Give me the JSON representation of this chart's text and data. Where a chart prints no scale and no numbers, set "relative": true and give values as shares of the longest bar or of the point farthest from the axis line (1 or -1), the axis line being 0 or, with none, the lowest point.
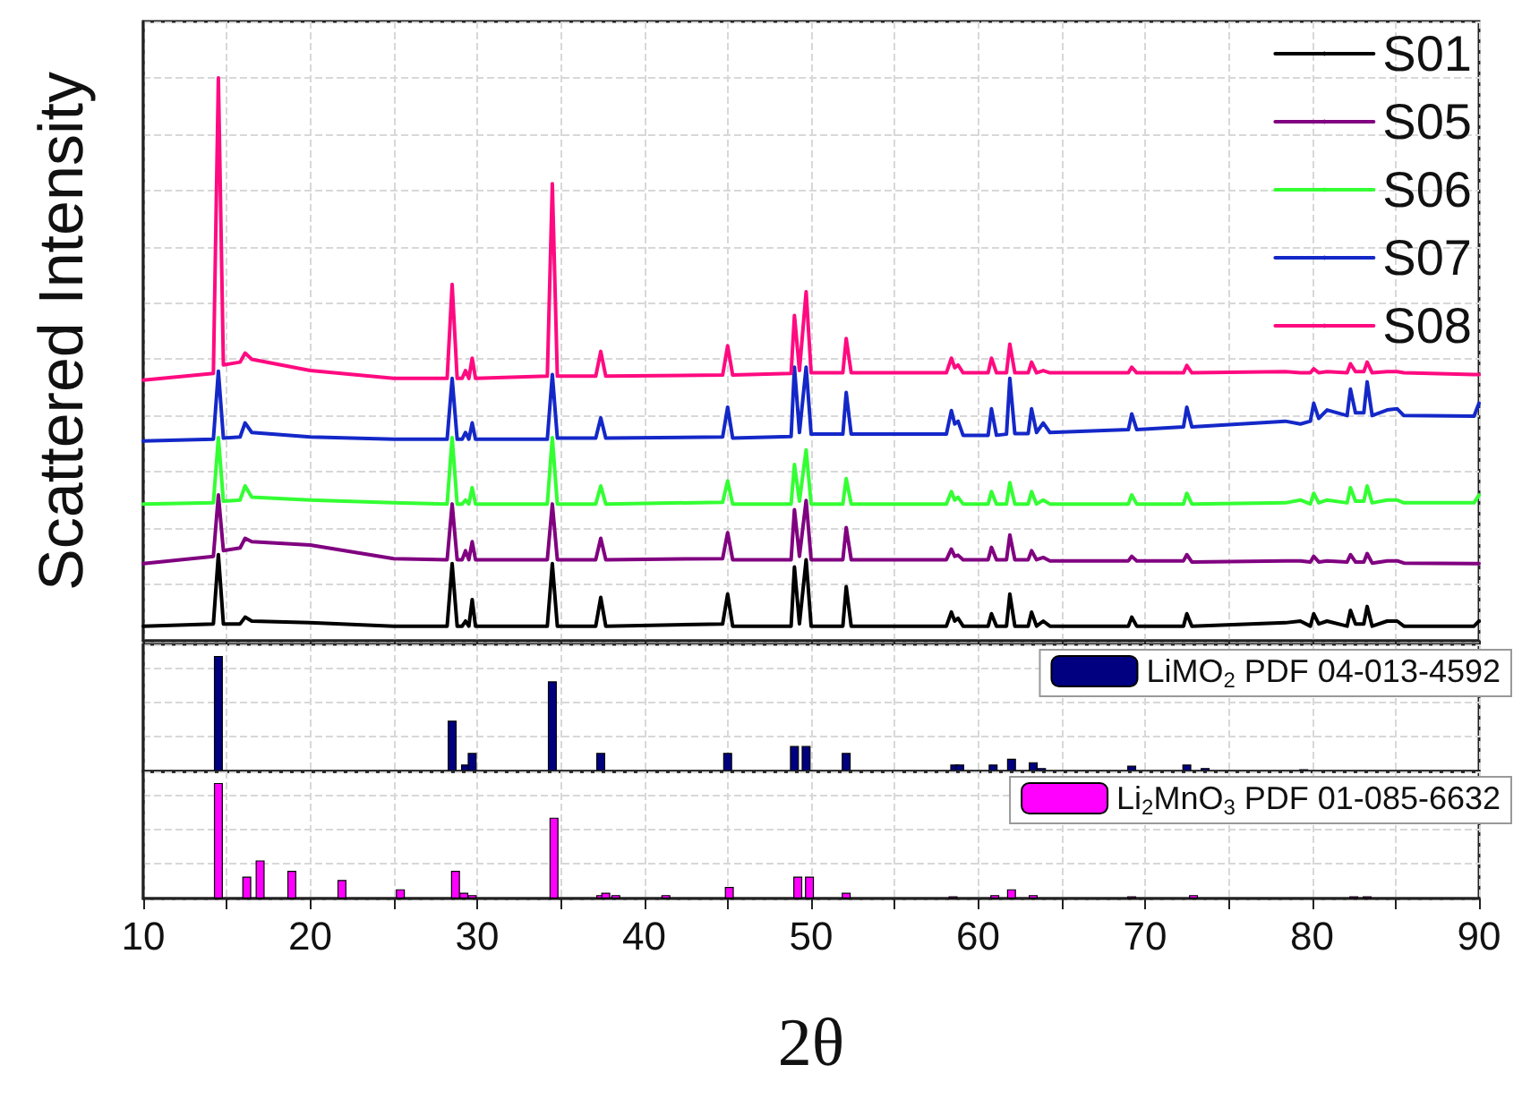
{
  "chart_data": [
    {
      "type": "line",
      "ylabel": "Scattered Intensity",
      "relative": true,
      "legend": "top right",
      "marker": "none",
      "line_style": "solid",
      "grid": true,
      "tick_labels": false,
      "xlim": [
        10,
        90
      ],
      "xticks": [
        10,
        {
          "value": 15,
          "label": null
        },
        20,
        {
          "value": 25,
          "label": null
        },
        30,
        {
          "value": 35,
          "label": null
        },
        40,
        {
          "value": 45,
          "label": null
        },
        50,
        {
          "value": 55,
          "label": null
        },
        60,
        {
          "value": 65,
          "label": null
        },
        70,
        {
          "value": 75,
          "label": null
        },
        80,
        {
          "value": 85,
          "label": null
        },
        90
      ],
      "x": [
        10,
        14.2,
        14.5,
        14.8,
        15.8,
        16.1,
        16.5,
        20,
        25,
        28.2,
        28.5,
        28.8,
        29.1,
        29.3,
        29.5,
        29.7,
        29.9,
        34.2,
        34.5,
        34.8,
        37.1,
        37.4,
        37.7,
        44.7,
        45,
        45.3,
        48.8,
        49,
        49.3,
        49.7,
        50,
        51.9,
        52.1,
        52.4,
        58.1,
        58.4,
        58.6,
        58.8,
        59.1,
        60.6,
        60.8,
        61.1,
        61.7,
        61.9,
        62.2,
        63,
        63.2,
        63.5,
        63.9,
        64.3,
        69,
        69.2,
        69.5,
        72.3,
        72.5,
        72.8,
        78.4,
        79.3,
        79.9,
        80.1,
        80.4,
        80.9,
        82.1,
        82.3,
        82.6,
        83.1,
        83.3,
        83.6,
        84.5,
        85.1,
        85.5,
        89.7,
        90
      ],
      "series": [
        {
          "name": "S01",
          "color": "#000000",
          "values": [
            0.026,
            0.03,
            0.153,
            0.03,
            0.03,
            0.042,
            0.035,
            0.032,
            0.026,
            0.026,
            0.137,
            0.026,
            0.026,
            0.035,
            0.026,
            0.073,
            0.026,
            0.026,
            0.137,
            0.026,
            0.026,
            0.077,
            0.026,
            0.03,
            0.083,
            0.026,
            0.026,
            0.131,
            0.03,
            0.144,
            0.026,
            0.026,
            0.096,
            0.026,
            0.026,
            0.051,
            0.035,
            0.04,
            0.026,
            0.026,
            0.048,
            0.026,
            0.026,
            0.083,
            0.026,
            0.026,
            0.051,
            0.026,
            0.035,
            0.026,
            0.026,
            0.042,
            0.026,
            0.026,
            0.048,
            0.026,
            0.032,
            0.035,
            0.026,
            0.048,
            0.03,
            0.035,
            0.026,
            0.054,
            0.03,
            0.03,
            0.061,
            0.026,
            0.035,
            0.035,
            0.026,
            0.026,
            0.035
          ]
        },
        {
          "name": "S05",
          "color": "#800080",
          "values": [
            0.137,
            0.15,
            0.259,
            0.16,
            0.165,
            0.182,
            0.176,
            0.17,
            0.146,
            0.144,
            0.243,
            0.144,
            0.144,
            0.16,
            0.144,
            0.176,
            0.144,
            0.144,
            0.243,
            0.144,
            0.144,
            0.182,
            0.144,
            0.146,
            0.192,
            0.144,
            0.144,
            0.233,
            0.15,
            0.249,
            0.144,
            0.144,
            0.201,
            0.144,
            0.144,
            0.163,
            0.15,
            0.152,
            0.144,
            0.144,
            0.166,
            0.144,
            0.144,
            0.188,
            0.144,
            0.144,
            0.16,
            0.144,
            0.148,
            0.142,
            0.142,
            0.15,
            0.142,
            0.142,
            0.153,
            0.14,
            0.142,
            0.142,
            0.14,
            0.15,
            0.14,
            0.142,
            0.14,
            0.153,
            0.14,
            0.14,
            0.155,
            0.138,
            0.142,
            0.142,
            0.138,
            0.137,
            0.137
          ]
        },
        {
          "name": "S06",
          "color": "#33ff33",
          "values": [
            0.243,
            0.245,
            0.361,
            0.248,
            0.25,
            0.275,
            0.255,
            0.25,
            0.245,
            0.243,
            0.361,
            0.243,
            0.243,
            0.25,
            0.243,
            0.272,
            0.243,
            0.243,
            0.361,
            0.243,
            0.243,
            0.275,
            0.243,
            0.246,
            0.284,
            0.243,
            0.243,
            0.313,
            0.248,
            0.339,
            0.243,
            0.243,
            0.288,
            0.243,
            0.243,
            0.265,
            0.25,
            0.255,
            0.243,
            0.243,
            0.265,
            0.243,
            0.243,
            0.281,
            0.243,
            0.243,
            0.265,
            0.243,
            0.25,
            0.243,
            0.243,
            0.259,
            0.243,
            0.243,
            0.262,
            0.243,
            0.245,
            0.25,
            0.243,
            0.262,
            0.245,
            0.25,
            0.245,
            0.272,
            0.248,
            0.248,
            0.275,
            0.245,
            0.25,
            0.25,
            0.245,
            0.245,
            0.259
          ]
        },
        {
          "name": "S07",
          "color": "#1428c8",
          "values": [
            0.355,
            0.358,
            0.479,
            0.36,
            0.362,
            0.387,
            0.37,
            0.362,
            0.358,
            0.358,
            0.466,
            0.358,
            0.358,
            0.37,
            0.358,
            0.387,
            0.358,
            0.358,
            0.473,
            0.36,
            0.36,
            0.396,
            0.36,
            0.362,
            0.415,
            0.36,
            0.363,
            0.486,
            0.37,
            0.486,
            0.367,
            0.367,
            0.441,
            0.367,
            0.367,
            0.409,
            0.385,
            0.39,
            0.365,
            0.365,
            0.412,
            0.365,
            0.367,
            0.466,
            0.368,
            0.368,
            0.412,
            0.37,
            0.387,
            0.37,
            0.375,
            0.403,
            0.375,
            0.38,
            0.415,
            0.38,
            0.39,
            0.385,
            0.39,
            0.422,
            0.395,
            0.41,
            0.4,
            0.447,
            0.405,
            0.405,
            0.46,
            0.4,
            0.41,
            0.412,
            0.4,
            0.399,
            0.422
          ]
        },
        {
          "name": "S08",
          "color": "#ff0a80",
          "values": [
            0.463,
            0.475,
            1.0,
            0.49,
            0.495,
            0.511,
            0.5,
            0.48,
            0.466,
            0.466,
            0.633,
            0.466,
            0.466,
            0.48,
            0.466,
            0.502,
            0.466,
            0.47,
            0.812,
            0.47,
            0.47,
            0.514,
            0.47,
            0.472,
            0.524,
            0.472,
            0.475,
            0.578,
            0.48,
            0.62,
            0.476,
            0.476,
            0.537,
            0.476,
            0.476,
            0.502,
            0.485,
            0.49,
            0.476,
            0.476,
            0.502,
            0.476,
            0.476,
            0.527,
            0.476,
            0.476,
            0.495,
            0.476,
            0.48,
            0.476,
            0.476,
            0.486,
            0.476,
            0.476,
            0.489,
            0.476,
            0.478,
            0.476,
            0.476,
            0.483,
            0.476,
            0.478,
            0.476,
            0.492,
            0.478,
            0.478,
            0.495,
            0.476,
            0.478,
            0.478,
            0.476,
            0.473,
            0.473
          ]
        }
      ]
    },
    {
      "type": "bar",
      "relative": true,
      "legend": "top right",
      "grid": true,
      "tick_labels": false,
      "xlim": [
        10,
        90
      ],
      "xticks": [
        10,
        {
          "value": 15,
          "label": null
        },
        20,
        {
          "value": 25,
          "label": null
        },
        30,
        {
          "value": 35,
          "label": null
        },
        40,
        {
          "value": 45,
          "label": null
        },
        50,
        {
          "value": 55,
          "label": null
        },
        60,
        {
          "value": 65,
          "label": null
        },
        70,
        {
          "value": 75,
          "label": null
        },
        80,
        {
          "value": 85,
          "label": null
        },
        90
      ],
      "x": [
        14.5,
        28.5,
        29.3,
        29.7,
        34.5,
        37.4,
        45,
        49,
        49.7,
        52.1,
        58.6,
        58.9,
        60.9,
        62,
        63.3,
        63.8,
        69.2,
        72.5,
        73.6,
        79.5
      ],
      "series": [
        {
          "name": "LiMO$_{2}$ PDF 04-013-4592",
          "color": "#000080",
          "values": [
            1.0,
            0.44,
            0.06,
            0.16,
            0.78,
            0.16,
            0.16,
            0.22,
            0.22,
            0.16,
            0.06,
            0.06,
            0.06,
            0.11,
            0.08,
            0.03,
            0.05,
            0.06,
            0.03,
            0.02
          ]
        }
      ]
    },
    {
      "type": "bar",
      "relative": true,
      "legend": "top right",
      "grid": true,
      "tick_labels": "x",
      "xlabel": "2θ",
      "xlim": [
        10,
        90
      ],
      "xticks": [
        10,
        {
          "value": 15,
          "label": null
        },
        20,
        {
          "value": 25,
          "label": null
        },
        30,
        {
          "value": 35,
          "label": null
        },
        40,
        {
          "value": 45,
          "label": null
        },
        50,
        {
          "value": 55,
          "label": null
        },
        60,
        {
          "value": 65,
          "label": null
        },
        70,
        {
          "value": 75,
          "label": null
        },
        80,
        {
          "value": 85,
          "label": null
        },
        90
      ],
      "x": [
        14.5,
        16.2,
        17.0,
        18.9,
        21.9,
        25.4,
        28.7,
        29.2,
        29.7,
        34.6,
        37.4,
        37.7,
        38.3,
        41.3,
        45.1,
        49.2,
        49.9,
        52.1,
        58.5,
        61,
        62,
        63.3,
        69.2,
        72.9,
        82.5,
        83.3
      ],
      "series": [
        {
          "name": "Li$_{2}$MnO$_{3}$ PDF 01-085-6632",
          "color": "#ff00ff",
          "values": [
            1.0,
            0.19,
            0.33,
            0.24,
            0.16,
            0.08,
            0.24,
            0.05,
            0.03,
            0.7,
            0.03,
            0.05,
            0.03,
            0.03,
            0.1,
            0.19,
            0.19,
            0.05,
            0.02,
            0.03,
            0.08,
            0.03,
            0.02,
            0.03,
            0.02,
            0.02
          ]
        }
      ]
    }
  ]
}
